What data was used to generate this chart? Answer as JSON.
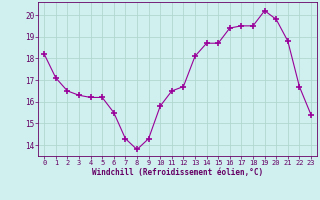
{
  "x": [
    0,
    1,
    2,
    3,
    4,
    5,
    6,
    7,
    8,
    9,
    10,
    11,
    12,
    13,
    14,
    15,
    16,
    17,
    18,
    19,
    20,
    21,
    22,
    23
  ],
  "y": [
    18.2,
    17.1,
    16.5,
    16.3,
    16.2,
    16.2,
    15.5,
    14.3,
    13.8,
    14.3,
    15.8,
    16.5,
    16.7,
    18.1,
    18.7,
    18.7,
    19.4,
    19.5,
    19.5,
    20.2,
    19.8,
    18.8,
    16.7,
    15.4
  ],
  "line_color": "#990099",
  "marker": "+",
  "marker_size": 4,
  "bg_color": "#cff0ee",
  "grid_color": "#b0d8d0",
  "xlabel": "Windchill (Refroidissement éolien,°C)",
  "xlabel_color": "#660066",
  "tick_color": "#660066",
  "axis_color": "#660066",
  "ylim": [
    13.5,
    20.6
  ],
  "xlim": [
    -0.5,
    23.5
  ],
  "yticks": [
    14,
    15,
    16,
    17,
    18,
    19,
    20
  ],
  "xticks": [
    0,
    1,
    2,
    3,
    4,
    5,
    6,
    7,
    8,
    9,
    10,
    11,
    12,
    13,
    14,
    15,
    16,
    17,
    18,
    19,
    20,
    21,
    22,
    23
  ],
  "figsize": [
    3.2,
    2.0
  ],
  "dpi": 100
}
